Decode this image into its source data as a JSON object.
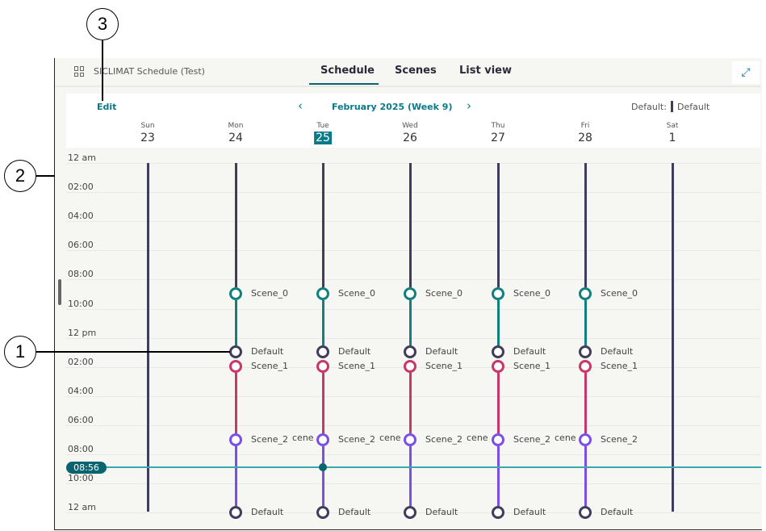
{
  "app": {
    "title": "SICLIMAT Schedule (Test)",
    "grid_icon": "grid-icon",
    "expand_icon": "expand-icon"
  },
  "tabs": [
    {
      "label": "Schedule",
      "active": true
    },
    {
      "label": "Scenes"
    },
    {
      "label": "List view"
    }
  ],
  "toolbar": {
    "edit": "Edit",
    "period": "February 2025 (Week 9)",
    "prev": "‹",
    "next": "›",
    "default_label": "Default:",
    "default_value": "Default"
  },
  "days": [
    {
      "name": "Sun",
      "num": "23"
    },
    {
      "name": "Mon",
      "num": "24"
    },
    {
      "name": "Tue",
      "num": "25",
      "today": true
    },
    {
      "name": "Wed",
      "num": "26"
    },
    {
      "name": "Thu",
      "num": "27"
    },
    {
      "name": "Fri",
      "num": "28"
    },
    {
      "name": "Sat",
      "num": "1"
    }
  ],
  "time_labels": [
    "12 am",
    "02:00",
    "04:00",
    "06:00",
    "08:00",
    "10:00",
    "12 pm",
    "02:00",
    "04:00",
    "06:00",
    "08:00",
    "10:00",
    "12 am"
  ],
  "current_time": "08:56",
  "colors": {
    "Default": "#3f3d5c",
    "Scene_0": "#12807e",
    "Scene_1": "#c8376a",
    "Scene_2": "#7b4fe6",
    "accent": "#0a7a8a"
  },
  "weekday_events": [
    {
      "scene": "Scene_0",
      "label": "Scene_0"
    },
    {
      "scene": "Default",
      "label": "Default"
    },
    {
      "scene": "Scene_1",
      "label": "Scene_1"
    },
    {
      "scene": "Scene_2",
      "label": "Scene_2"
    },
    {
      "scene": "Default",
      "label": "Default"
    }
  ],
  "truncated_label": "cene",
  "callouts": [
    "1",
    "2",
    "3"
  ]
}
